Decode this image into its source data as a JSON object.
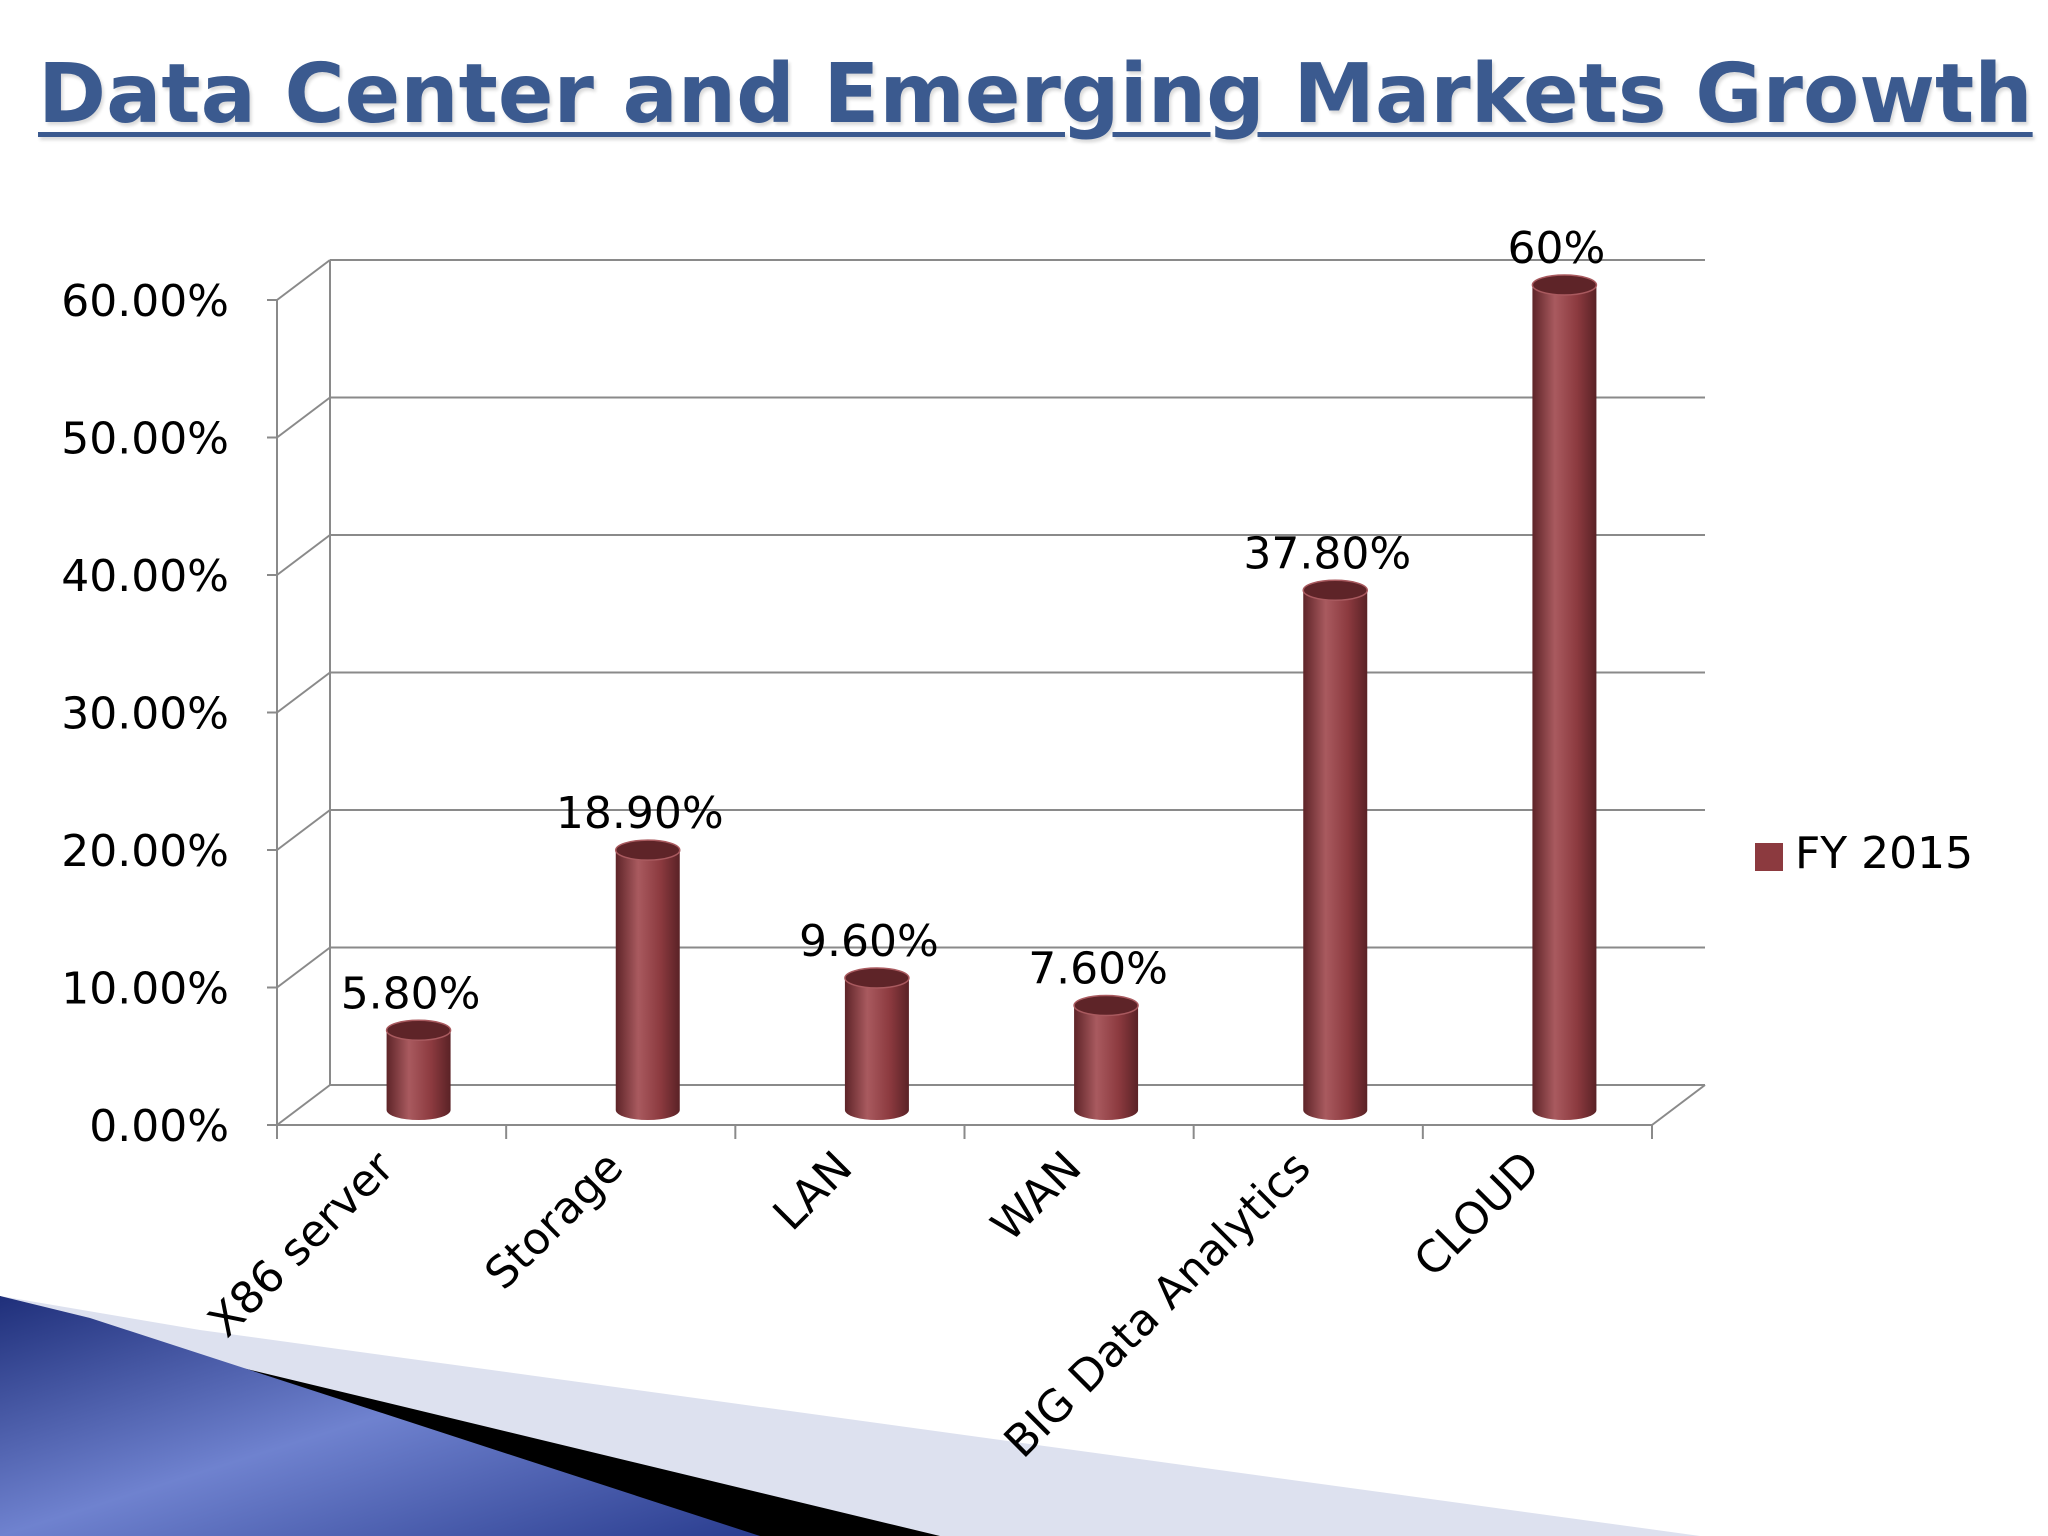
{
  "slide": {
    "title": "Data Center and Emerging Markets Growth"
  },
  "colors": {
    "title": "#3b5a8f",
    "bar": "#8c3a3f",
    "bar_dark": "#5e2428",
    "bar_light": "#a95a5f",
    "grid": "#8a8a8a",
    "decor_blue": "#3a4fa8",
    "decor_light": "#dde1ef"
  },
  "chart_data": {
    "type": "bar",
    "title": "",
    "xlabel": "",
    "ylabel": "",
    "categories": [
      "X86 server",
      "Storage",
      "LAN",
      "WAN",
      "BIG Data Analytics",
      "CLOUD"
    ],
    "series": [
      {
        "name": "FY 2015",
        "values": [
          5.8,
          18.9,
          9.6,
          7.6,
          37.8,
          60
        ],
        "labels": [
          "5.80%",
          "18.90%",
          "9.60%",
          "7.60%",
          "37.80%",
          "60%"
        ]
      }
    ],
    "ylim": [
      0,
      60
    ],
    "yticks": [
      0,
      10,
      20,
      30,
      40,
      50,
      60
    ],
    "ytick_labels": [
      "0.00%",
      "10.00%",
      "20.00%",
      "30.00%",
      "40.00%",
      "50.00%",
      "60.00%"
    ],
    "grid": true,
    "legend": {
      "position": "right",
      "entries": [
        "FY 2015"
      ]
    }
  }
}
